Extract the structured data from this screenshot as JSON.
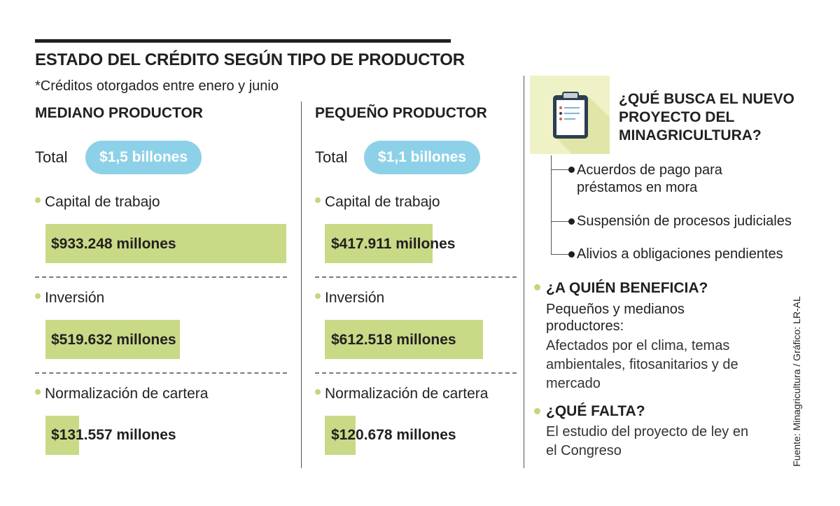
{
  "title": "ESTADO DEL CRÉDITO SEGÚN TIPO DE PRODUCTOR",
  "subtitle": "*Créditos otorgados entre enero y junio",
  "total_label": "Total",
  "chart_data": {
    "type": "bar",
    "title": "ESTADO DEL CRÉDITO SEGÚN TIPO DE PRODUCTOR",
    "unit": "millones",
    "categories": [
      "Capital de trabajo",
      "Inversión",
      "Normalización de cartera"
    ],
    "series": [
      {
        "name": "MEDIANO PRODUCTOR",
        "total_label": "$1,5 billones",
        "values": [
          933248,
          519632,
          131557
        ],
        "value_labels": [
          "$933.248 millones",
          "$519.632 millones",
          "$131.557 millones"
        ]
      },
      {
        "name": "PEQUEÑO PRODUCTOR",
        "total_label": "$1,1 billones",
        "values": [
          417911,
          612518,
          120678
        ],
        "value_labels": [
          "$417.911 millones",
          "$612.518 millones",
          "$120.678 millones"
        ]
      }
    ],
    "xlim": [
      0,
      933248
    ]
  },
  "sidebar": {
    "question": "¿QUÉ BUSCA EL NUEVO PROYECTO DEL MINAGRICULTURA?",
    "items": [
      "Acuerdos de pago para préstamos en mora",
      "Suspensión de procesos judiciales",
      "Alivios a obligaciones pendientes"
    ],
    "beneficia": {
      "heading": "¿A QUIÉN BENEFICIA?",
      "subheading": "Pequeños y medianos productores:",
      "body": "Afectados por el clima, temas ambientales, fitosanitarios y de mercado"
    },
    "falta": {
      "heading": "¿QUÉ FALTA?",
      "body": "El estudio del proyecto de ley en el Congreso"
    }
  },
  "source": "Fuente: Minagricultura  / Gráfico: LR-AL",
  "colors": {
    "bar": "#c8da86",
    "pill": "#8dd1e8",
    "dot": "#c3d67e",
    "icon_bg": "#eef2c6",
    "icon": "#2c3e50"
  },
  "icons": [
    "clipboard-icon"
  ]
}
